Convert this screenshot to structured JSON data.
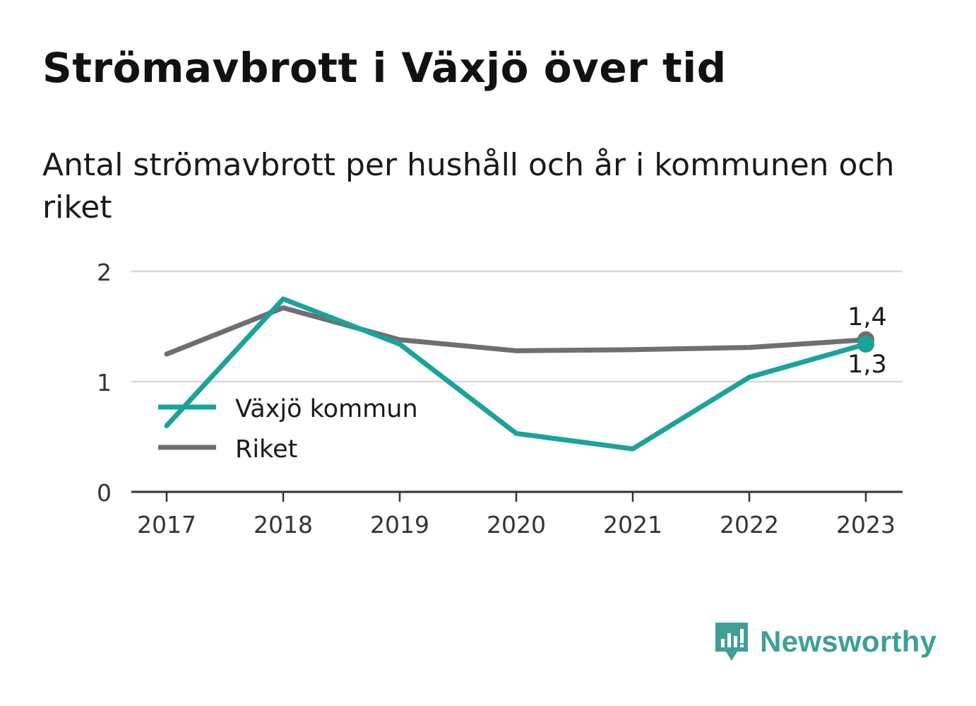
{
  "title": "Strömavbrott i Växjö över tid",
  "subtitle": "Antal strömavbrott per hushåll och år i kommunen och riket",
  "brand": {
    "name": "Newsworthy"
  },
  "colors": {
    "vaxjo": "#1aa39a",
    "riket": "#6e6e73",
    "grid": "#d9d9d9",
    "axis": "#333333",
    "brand": "#3f9f97"
  },
  "chart_data": {
    "type": "line",
    "x": [
      "2017",
      "2018",
      "2019",
      "2020",
      "2021",
      "2022",
      "2023"
    ],
    "ylim": [
      0,
      2
    ],
    "yticks": [
      0,
      1,
      2
    ],
    "ytick_labels": [
      "0",
      "1",
      "2"
    ],
    "grid": true,
    "legend_position": "left",
    "series": [
      {
        "name": "Växjö kommun",
        "values": [
          0.6,
          1.75,
          1.34,
          0.53,
          0.39,
          1.04,
          1.34
        ],
        "end_label": "1,3"
      },
      {
        "name": "Riket",
        "values": [
          1.25,
          1.67,
          1.38,
          1.28,
          1.29,
          1.31,
          1.38
        ],
        "end_label": "1,4"
      }
    ]
  }
}
